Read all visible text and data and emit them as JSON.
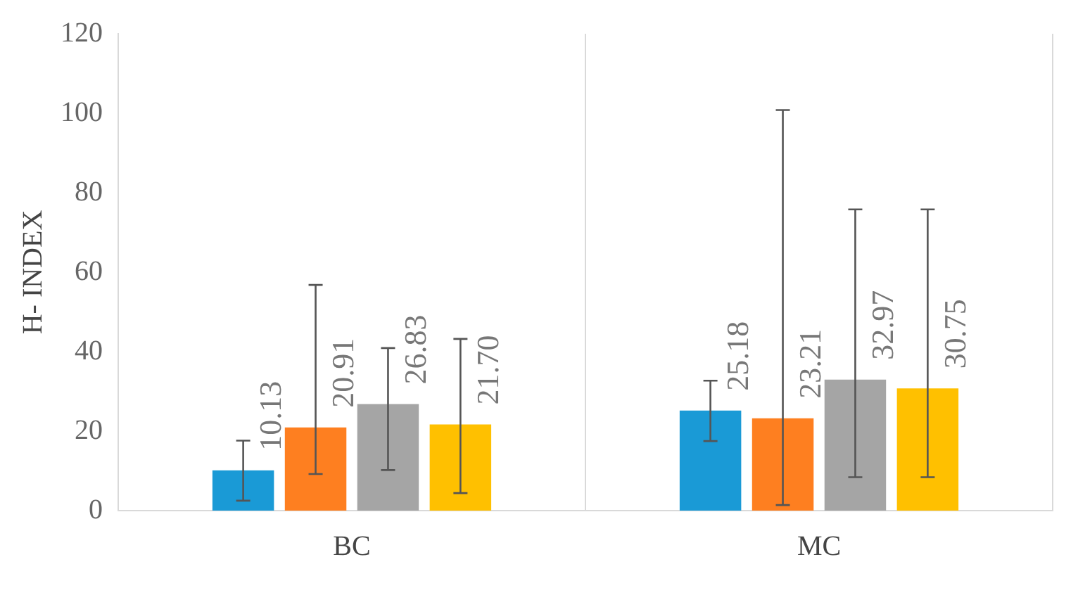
{
  "chart_data": {
    "type": "bar",
    "ylabel": "H- INDEX",
    "categories": [
      "BC",
      "MC"
    ],
    "series": [
      {
        "color": "#1a9ad6",
        "values": [
          10.13,
          25.18
        ],
        "value_labels": [
          "10.13",
          "25.18"
        ],
        "errors": [
          [
            2.5,
            17.6
          ],
          [
            17.5,
            32.7
          ]
        ]
      },
      {
        "color": "#fe7f20",
        "values": [
          20.91,
          23.21
        ],
        "value_labels": [
          "20.91",
          "23.21"
        ],
        "errors": [
          [
            9.2,
            56.8
          ],
          [
            1.4,
            100.8
          ]
        ]
      },
      {
        "color": "#a5a5a5",
        "values": [
          26.83,
          32.97
        ],
        "value_labels": [
          "26.83",
          "32.97"
        ],
        "errors": [
          [
            10.2,
            40.9
          ],
          [
            8.4,
            75.8
          ]
        ]
      },
      {
        "color": "#ffc000",
        "values": [
          21.7,
          30.75
        ],
        "value_labels": [
          "21.70",
          "30.75"
        ],
        "errors": [
          [
            4.4,
            43.2
          ],
          [
            8.4,
            75.8
          ]
        ]
      }
    ],
    "ylim": [
      0,
      120
    ],
    "yticks": [
      0,
      20,
      40,
      60,
      80,
      100,
      120
    ],
    "grid": "x",
    "legend": false
  }
}
